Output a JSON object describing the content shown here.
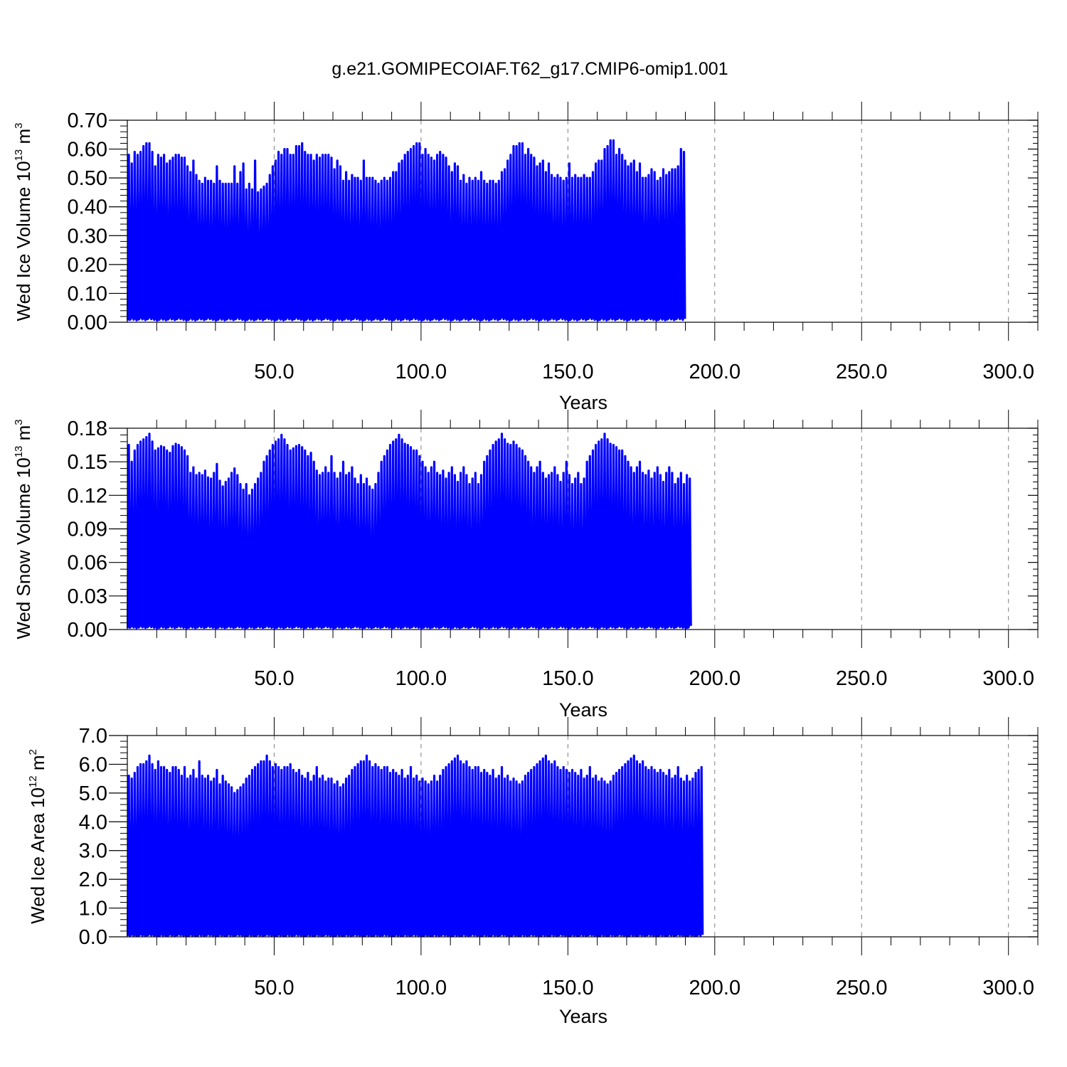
{
  "title": "g.e21.GOMIPECOIAF.T62_g17.CMIP6-omip1.001",
  "colors": {
    "series": "#0000ff",
    "frame": "#000000",
    "grid": "#808080"
  },
  "chart_data": [
    {
      "type": "line",
      "xlabel": "Years",
      "ylabel": {
        "main": "Wed Ice Volume 10",
        "exp": "13",
        "unit": " m",
        "unit_exp": "3"
      },
      "xlim": [
        0,
        310
      ],
      "ylim": [
        0,
        0.7
      ],
      "xticks": [
        50,
        100,
        150,
        200,
        250,
        300
      ],
      "xtick_labels": [
        "50.0",
        "100.0",
        "150.0",
        "200.0",
        "250.0",
        "300.0"
      ],
      "yticks": [
        0,
        0.1,
        0.2,
        0.3,
        0.4,
        0.5,
        0.6,
        0.7
      ],
      "ytick_labels": [
        "0.00",
        "0.10",
        "0.20",
        "0.30",
        "0.40",
        "0.50",
        "0.60",
        "0.70"
      ],
      "grid": "vertical dashed at major x ticks",
      "series": [
        {
          "cycle": "annual",
          "annual_max": [
            0.58,
            0.55,
            0.59,
            0.58,
            0.59,
            0.61,
            0.62,
            0.62,
            0.59,
            0.54,
            0.58,
            0.57,
            0.58,
            0.55,
            0.56,
            0.57,
            0.58,
            0.58,
            0.57,
            0.57,
            0.54,
            0.52,
            0.56,
            0.51,
            0.49,
            0.48,
            0.5,
            0.49,
            0.49,
            0.48,
            0.54,
            0.49,
            0.48,
            0.48,
            0.48,
            0.48,
            0.54,
            0.48,
            0.52,
            0.55,
            0.46,
            0.48,
            0.46,
            0.56,
            0.45,
            0.46,
            0.47,
            0.48,
            0.51,
            0.54,
            0.56,
            0.59,
            0.58,
            0.6,
            0.6,
            0.58,
            0.58,
            0.61,
            0.61,
            0.62,
            0.59,
            0.58,
            0.58,
            0.56,
            0.58,
            0.57,
            0.58,
            0.58,
            0.58,
            0.57,
            0.53,
            0.56,
            0.54,
            0.49,
            0.52,
            0.49,
            0.51,
            0.5,
            0.5,
            0.49,
            0.56,
            0.5,
            0.5,
            0.5,
            0.49,
            0.48,
            0.49,
            0.5,
            0.49,
            0.5,
            0.52,
            0.52,
            0.55,
            0.56,
            0.58,
            0.59,
            0.6,
            0.61,
            0.62,
            0.62,
            0.58,
            0.6,
            0.58,
            0.57,
            0.56,
            0.58,
            0.59,
            0.58,
            0.57,
            0.54,
            0.52,
            0.55,
            0.54,
            0.49,
            0.51,
            0.48,
            0.5,
            0.49,
            0.5,
            0.49,
            0.52,
            0.49,
            0.48,
            0.49,
            0.49,
            0.48,
            0.49,
            0.52,
            0.53,
            0.56,
            0.58,
            0.61,
            0.61,
            0.62,
            0.62,
            0.58,
            0.6,
            0.58,
            0.57,
            0.54,
            0.55,
            0.56,
            0.52,
            0.55,
            0.51,
            0.5,
            0.51,
            0.5,
            0.49,
            0.5,
            0.55,
            0.5,
            0.51,
            0.5,
            0.5,
            0.51,
            0.5,
            0.5,
            0.52,
            0.55,
            0.56,
            0.56,
            0.6,
            0.61,
            0.63,
            0.63,
            0.58,
            0.6,
            0.58,
            0.56,
            0.54,
            0.55,
            0.56,
            0.52,
            0.55,
            0.5,
            0.5,
            0.51,
            0.53,
            0.52,
            0.49,
            0.5,
            0.53,
            0.51,
            0.52,
            0.53,
            0.53,
            0.54,
            0.6,
            0.59
          ],
          "min_approx": 0.01
        }
      ]
    },
    {
      "type": "line",
      "xlabel": "Years",
      "ylabel": {
        "main": "Wed Snow Volume 10",
        "exp": "13",
        "unit": " m",
        "unit_exp": "3"
      },
      "xlim": [
        0,
        310
      ],
      "ylim": [
        0,
        0.18
      ],
      "xticks": [
        50,
        100,
        150,
        200,
        250,
        300
      ],
      "xtick_labels": [
        "50.0",
        "100.0",
        "150.0",
        "200.0",
        "250.0",
        "300.0"
      ],
      "yticks": [
        0,
        0.03,
        0.06,
        0.09,
        0.12,
        0.15,
        0.18
      ],
      "ytick_labels": [
        "0.00",
        "0.03",
        "0.06",
        "0.09",
        "0.12",
        "0.15",
        "0.18"
      ],
      "grid": "vertical dashed at major x ticks",
      "series": [
        {
          "cycle": "annual",
          "annual_max": [
            0.165,
            0.15,
            0.16,
            0.165,
            0.168,
            0.17,
            0.172,
            0.175,
            0.168,
            0.16,
            0.162,
            0.164,
            0.163,
            0.16,
            0.158,
            0.164,
            0.166,
            0.165,
            0.163,
            0.16,
            0.155,
            0.14,
            0.145,
            0.138,
            0.14,
            0.138,
            0.142,
            0.136,
            0.135,
            0.14,
            0.148,
            0.133,
            0.128,
            0.132,
            0.135,
            0.14,
            0.144,
            0.138,
            0.13,
            0.125,
            0.13,
            0.12,
            0.125,
            0.13,
            0.135,
            0.14,
            0.15,
            0.155,
            0.16,
            0.165,
            0.168,
            0.17,
            0.174,
            0.17,
            0.165,
            0.16,
            0.162,
            0.164,
            0.165,
            0.163,
            0.16,
            0.155,
            0.158,
            0.15,
            0.142,
            0.138,
            0.14,
            0.145,
            0.14,
            0.155,
            0.14,
            0.135,
            0.14,
            0.15,
            0.138,
            0.14,
            0.145,
            0.135,
            0.13,
            0.138,
            0.13,
            0.135,
            0.128,
            0.125,
            0.13,
            0.14,
            0.15,
            0.155,
            0.16,
            0.165,
            0.168,
            0.17,
            0.174,
            0.17,
            0.166,
            0.165,
            0.163,
            0.16,
            0.16,
            0.155,
            0.15,
            0.145,
            0.14,
            0.145,
            0.15,
            0.14,
            0.138,
            0.142,
            0.135,
            0.14,
            0.145,
            0.138,
            0.132,
            0.14,
            0.145,
            0.138,
            0.13,
            0.135,
            0.14,
            0.13,
            0.138,
            0.15,
            0.155,
            0.16,
            0.165,
            0.168,
            0.17,
            0.175,
            0.17,
            0.166,
            0.165,
            0.168,
            0.165,
            0.162,
            0.16,
            0.155,
            0.15,
            0.145,
            0.14,
            0.145,
            0.15,
            0.14,
            0.135,
            0.138,
            0.14,
            0.145,
            0.138,
            0.132,
            0.14,
            0.15,
            0.138,
            0.13,
            0.135,
            0.14,
            0.13,
            0.135,
            0.15,
            0.155,
            0.16,
            0.165,
            0.168,
            0.17,
            0.175,
            0.17,
            0.166,
            0.165,
            0.163,
            0.16,
            0.16,
            0.155,
            0.15,
            0.145,
            0.14,
            0.145,
            0.15,
            0.14,
            0.138,
            0.142,
            0.135,
            0.14,
            0.145,
            0.138,
            0.132,
            0.14,
            0.145,
            0.14,
            0.13,
            0.135,
            0.14,
            0.13,
            0.138,
            0.135
          ],
          "min_approx": 0.002
        }
      ]
    },
    {
      "type": "line",
      "xlabel": "Years",
      "ylabel": {
        "main": "Wed Ice Area 10",
        "exp": "12",
        "unit": " m",
        "unit_exp": "2"
      },
      "xlim": [
        0,
        310
      ],
      "ylim": [
        0,
        7
      ],
      "xticks": [
        50,
        100,
        150,
        200,
        250,
        300
      ],
      "xtick_labels": [
        "50.0",
        "100.0",
        "150.0",
        "200.0",
        "250.0",
        "300.0"
      ],
      "yticks": [
        0,
        1,
        2,
        3,
        4,
        5,
        6,
        7
      ],
      "ytick_labels": [
        "0.0",
        "1.0",
        "2.0",
        "3.0",
        "4.0",
        "5.0",
        "6.0",
        "7.0"
      ],
      "grid": "vertical dashed at major x ticks",
      "series": [
        {
          "cycle": "annual",
          "annual_max": [
            5.6,
            5.5,
            5.7,
            5.9,
            6.0,
            6.0,
            6.1,
            6.3,
            6.0,
            5.8,
            6.1,
            5.9,
            5.9,
            5.8,
            5.7,
            5.9,
            5.9,
            5.8,
            5.6,
            5.9,
            5.5,
            5.6,
            5.8,
            5.5,
            6.1,
            5.6,
            5.5,
            5.6,
            5.4,
            5.5,
            5.8,
            5.3,
            5.6,
            5.4,
            5.3,
            5.2,
            5.0,
            5.1,
            5.2,
            5.3,
            5.5,
            5.6,
            5.8,
            5.9,
            6.0,
            6.1,
            6.1,
            6.3,
            6.1,
            5.9,
            6.0,
            5.9,
            5.8,
            5.9,
            5.9,
            6.0,
            5.8,
            5.7,
            5.8,
            5.6,
            5.5,
            5.7,
            5.4,
            5.6,
            5.9,
            5.5,
            5.6,
            5.4,
            5.5,
            5.5,
            5.3,
            5.4,
            5.2,
            5.3,
            5.5,
            5.6,
            5.8,
            5.9,
            6.0,
            6.1,
            6.1,
            6.3,
            6.1,
            5.9,
            6.0,
            5.9,
            5.8,
            5.9,
            5.9,
            5.7,
            5.8,
            5.7,
            5.6,
            5.8,
            5.5,
            5.6,
            5.9,
            5.5,
            5.6,
            5.4,
            5.5,
            5.4,
            5.3,
            5.4,
            5.6,
            5.4,
            5.6,
            5.8,
            5.9,
            6.0,
            6.1,
            6.2,
            6.3,
            6.1,
            6.0,
            6.1,
            5.9,
            5.8,
            5.9,
            5.9,
            5.7,
            5.8,
            5.7,
            5.6,
            5.8,
            5.5,
            5.6,
            5.9,
            5.5,
            5.6,
            5.4,
            5.5,
            5.4,
            5.3,
            5.4,
            5.6,
            5.7,
            5.8,
            5.9,
            6.0,
            6.1,
            6.2,
            6.3,
            6.1,
            6.0,
            6.1,
            5.9,
            5.8,
            5.9,
            5.8,
            5.7,
            5.8,
            5.7,
            5.6,
            5.8,
            5.5,
            5.6,
            5.9,
            5.5,
            5.6,
            5.4,
            5.5,
            5.4,
            5.3,
            5.4,
            5.6,
            5.7,
            5.8,
            5.9,
            6.0,
            6.1,
            6.2,
            6.3,
            6.1,
            6.0,
            6.1,
            5.9,
            5.8,
            5.9,
            5.8,
            5.7,
            5.8,
            5.7,
            5.6,
            5.8,
            5.5,
            5.6,
            5.9,
            5.5,
            5.4,
            5.6,
            5.4,
            5.5,
            5.7,
            5.8,
            5.9
          ],
          "min_approx": 0.05
        }
      ]
    }
  ]
}
